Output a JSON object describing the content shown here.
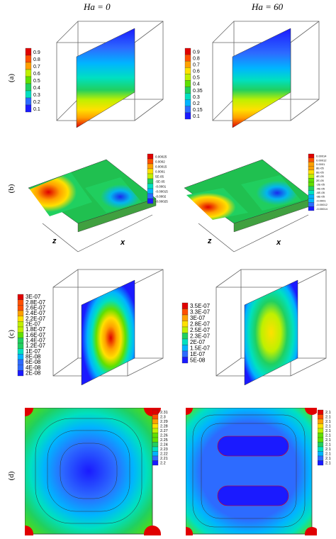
{
  "columns": [
    "Ha = 0",
    "Ha = 60"
  ],
  "rows": [
    "(a)",
    "(b)",
    "(c)",
    "(d)"
  ],
  "palette": [
    "#1a1aff",
    "#2d6bff",
    "#00b4ff",
    "#00e0c0",
    "#20d060",
    "#60e000",
    "#c0f000",
    "#ffe000",
    "#ffa000",
    "#ff5000",
    "#e00000"
  ],
  "panels": {
    "a_left": {
      "legend": [
        "0.9",
        "0.8",
        "0.7",
        "0.6",
        "0.5",
        "0.4",
        "0.3",
        "0.2",
        "0.1"
      ]
    },
    "a_right": {
      "legend": [
        "0.9",
        "0.8",
        "0.7",
        "0.6",
        "0.5",
        "0.4",
        "0.35",
        "0.3",
        "0.2",
        "0.15",
        "0.1"
      ]
    },
    "b_left": {
      "legend": [
        "0.00025",
        "0.0002",
        "0.00015",
        "0.0001",
        "5E-05",
        "-5E-05",
        "-0.0001",
        "-0.00015",
        "-0.0002",
        "-0.00025"
      ],
      "axes": {
        "z": "z",
        "x": "x"
      }
    },
    "b_right": {
      "legend": [
        "0.00014",
        "0.00012",
        "0.0001",
        "8E-05",
        "6E-05",
        "4E-05",
        "2E-05",
        "-2E-05",
        "-4E-05",
        "-6E-05",
        "-8E-05",
        "-0.0001",
        "-0.00012",
        "-0.00014"
      ],
      "axes": {
        "z": "z",
        "x": "x"
      }
    },
    "c_left": {
      "legend": [
        "3E-07",
        "2.8E-07",
        "2.6E-07",
        "2.4E-07",
        "2.2E-07",
        "2E-07",
        "1.8E-07",
        "1.6E-07",
        "1.4E-07",
        "1.2E-07",
        "1E-07",
        "8E-08",
        "6E-08",
        "4E-08",
        "2E-08"
      ]
    },
    "c_right": {
      "legend": [
        "3.5E-07",
        "3.3E-07",
        "3E-07",
        "2.8E-07",
        "2.5E-07",
        "2.3E-07",
        "2E-07",
        "1.5E-07",
        "1E-07",
        "5E-08"
      ]
    },
    "d_left": {
      "legend": [
        "2.31",
        "2.3",
        "2.29",
        "2.28",
        "2.27",
        "2.26",
        "2.25",
        "2.24",
        "2.23",
        "2.22",
        "2.21",
        "2.2"
      ]
    },
    "d_right": {
      "legend": [
        "2.1",
        "2.1",
        "2.1",
        "2.1",
        "2.1",
        "2.1",
        "2.1",
        "2.1",
        "2.1",
        "2.1",
        "2.1",
        "2.1"
      ]
    }
  }
}
